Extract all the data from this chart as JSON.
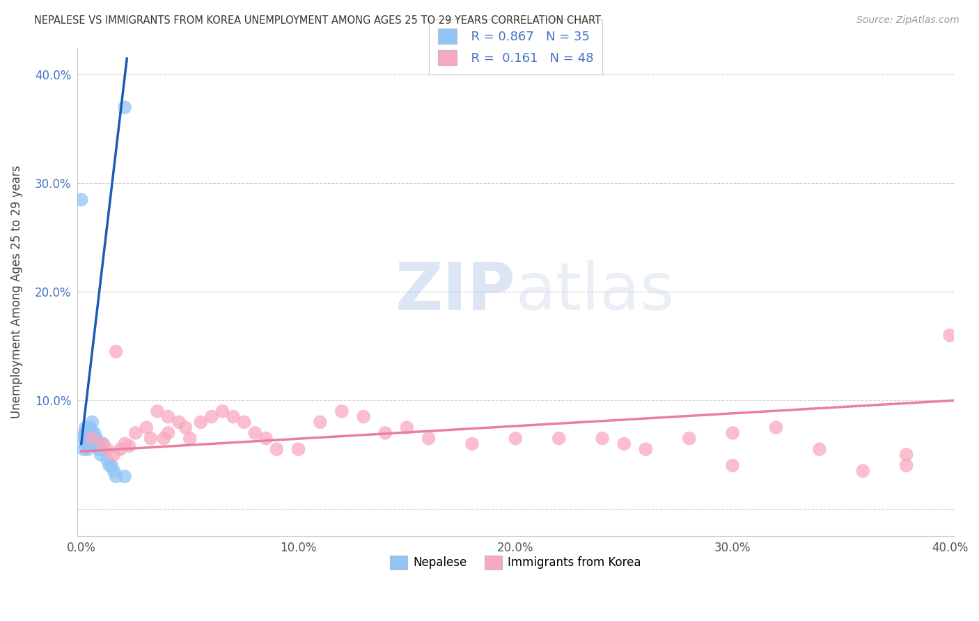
{
  "title": "NEPALESE VS IMMIGRANTS FROM KOREA UNEMPLOYMENT AMONG AGES 25 TO 29 YEARS CORRELATION CHART",
  "source": "Source: ZipAtlas.com",
  "ylabel": "Unemployment Among Ages 25 to 29 years",
  "xlim": [
    -0.002,
    0.402
  ],
  "ylim": [
    -0.025,
    0.425
  ],
  "xticks": [
    0.0,
    0.1,
    0.2,
    0.3,
    0.4
  ],
  "yticks": [
    0.0,
    0.1,
    0.2,
    0.3,
    0.4
  ],
  "xticklabels": [
    "0.0%",
    "10.0%",
    "20.0%",
    "30.0%",
    "40.0%"
  ],
  "yticklabels": [
    "",
    "10.0%",
    "20.0%",
    "30.0%",
    "40.0%"
  ],
  "nepalese_color": "#92C5F7",
  "korea_color": "#F9A8C0",
  "nepalese_line_color": "#1A5BB5",
  "korea_line_color": "#E87FA0",
  "grid_color": "#CCCCCC",
  "background_color": "#FFFFFF",
  "nepalese_x": [
    0.0,
    0.001,
    0.001,
    0.0015,
    0.002,
    0.002,
    0.002,
    0.002,
    0.003,
    0.003,
    0.003,
    0.003,
    0.004,
    0.004,
    0.004,
    0.005,
    0.005,
    0.005,
    0.006,
    0.006,
    0.006,
    0.007,
    0.007,
    0.008,
    0.008,
    0.009,
    0.01,
    0.01,
    0.012,
    0.013,
    0.014,
    0.015,
    0.016,
    0.02,
    0.02
  ],
  "nepalese_y": [
    0.285,
    0.055,
    0.065,
    0.07,
    0.06,
    0.065,
    0.07,
    0.075,
    0.055,
    0.06,
    0.065,
    0.07,
    0.065,
    0.07,
    0.075,
    0.065,
    0.07,
    0.08,
    0.06,
    0.065,
    0.07,
    0.06,
    0.065,
    0.055,
    0.06,
    0.05,
    0.055,
    0.06,
    0.045,
    0.04,
    0.04,
    0.035,
    0.03,
    0.03,
    0.37
  ],
  "korea_x": [
    0.005,
    0.01,
    0.012,
    0.015,
    0.016,
    0.018,
    0.02,
    0.022,
    0.025,
    0.03,
    0.032,
    0.035,
    0.038,
    0.04,
    0.04,
    0.045,
    0.048,
    0.05,
    0.055,
    0.06,
    0.065,
    0.07,
    0.075,
    0.08,
    0.085,
    0.09,
    0.1,
    0.11,
    0.12,
    0.13,
    0.14,
    0.15,
    0.16,
    0.18,
    0.2,
    0.22,
    0.24,
    0.25,
    0.26,
    0.28,
    0.3,
    0.32,
    0.34,
    0.36,
    0.38,
    0.4,
    0.38,
    0.3
  ],
  "korea_y": [
    0.065,
    0.06,
    0.055,
    0.05,
    0.145,
    0.055,
    0.06,
    0.058,
    0.07,
    0.075,
    0.065,
    0.09,
    0.065,
    0.07,
    0.085,
    0.08,
    0.075,
    0.065,
    0.08,
    0.085,
    0.09,
    0.085,
    0.08,
    0.07,
    0.065,
    0.055,
    0.055,
    0.08,
    0.09,
    0.085,
    0.07,
    0.075,
    0.065,
    0.06,
    0.065,
    0.065,
    0.065,
    0.06,
    0.055,
    0.065,
    0.07,
    0.075,
    0.055,
    0.035,
    0.04,
    0.16,
    0.05,
    0.04
  ],
  "nepalese_line_x": [
    0.0,
    0.021
  ],
  "nepalese_line_y": [
    0.06,
    0.415
  ],
  "korea_line_x": [
    0.0,
    0.402
  ],
  "korea_line_y": [
    0.053,
    0.1
  ]
}
